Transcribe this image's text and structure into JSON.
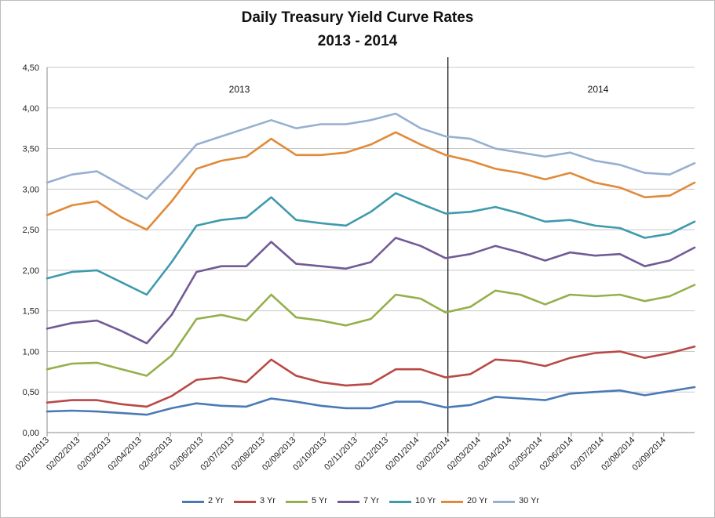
{
  "chart_data": {
    "type": "line",
    "title": "Daily Treasury Yield Curve Rates",
    "subtitle": "2013 - 2014",
    "xlabel": "",
    "ylabel": "",
    "ylim": [
      0,
      4.5
    ],
    "y_ticks": [
      "0,00",
      "0,50",
      "1,00",
      "1,50",
      "2,00",
      "2,50",
      "3,00",
      "3,50",
      "4,00",
      "4,50"
    ],
    "x_ticks": [
      "02/01/2013",
      "02/02/2013",
      "02/03/2013",
      "02/04/2013",
      "02/05/2013",
      "02/06/2013",
      "02/07/2013",
      "02/08/2013",
      "02/09/2013",
      "02/10/2013",
      "02/11/2013",
      "02/12/2013",
      "02/01/2014",
      "02/02/2014",
      "02/03/2014",
      "02/04/2014",
      "02/05/2014",
      "02/06/2014",
      "02/07/2014",
      "02/08/2014",
      "02/09/2014"
    ],
    "grid": "horizontal",
    "legend_position": "bottom",
    "divider_at": "02/02/2014",
    "annotations": [
      "2013",
      "2014"
    ],
    "series": [
      {
        "name": "2 Yr",
        "color": "#4a7ab5",
        "values": [
          0.26,
          0.27,
          0.26,
          0.24,
          0.22,
          0.3,
          0.36,
          0.33,
          0.32,
          0.42,
          0.38,
          0.33,
          0.3,
          0.3,
          0.38,
          0.38,
          0.31,
          0.34,
          0.44,
          0.42,
          0.4,
          0.48,
          0.5,
          0.52,
          0.46,
          0.51,
          0.56
        ]
      },
      {
        "name": "3 Yr",
        "color": "#b84a46",
        "values": [
          0.37,
          0.4,
          0.4,
          0.35,
          0.32,
          0.45,
          0.65,
          0.68,
          0.62,
          0.9,
          0.7,
          0.62,
          0.58,
          0.6,
          0.78,
          0.78,
          0.68,
          0.72,
          0.9,
          0.88,
          0.82,
          0.92,
          0.98,
          1.0,
          0.92,
          0.98,
          1.06
        ]
      },
      {
        "name": "5 Yr",
        "color": "#94b04a",
        "values": [
          0.78,
          0.85,
          0.86,
          0.78,
          0.7,
          0.95,
          1.4,
          1.45,
          1.38,
          1.7,
          1.42,
          1.38,
          1.32,
          1.4,
          1.7,
          1.65,
          1.48,
          1.55,
          1.75,
          1.7,
          1.58,
          1.7,
          1.68,
          1.7,
          1.62,
          1.68,
          1.82
        ]
      },
      {
        "name": "7 Yr",
        "color": "#725a96",
        "values": [
          1.28,
          1.35,
          1.38,
          1.25,
          1.1,
          1.45,
          1.98,
          2.05,
          2.05,
          2.35,
          2.08,
          2.05,
          2.02,
          2.1,
          2.4,
          2.3,
          2.15,
          2.2,
          2.3,
          2.22,
          2.12,
          2.22,
          2.18,
          2.2,
          2.05,
          2.12,
          2.28
        ]
      },
      {
        "name": "10 Yr",
        "color": "#3f9aad",
        "values": [
          1.9,
          1.98,
          2.0,
          1.85,
          1.7,
          2.1,
          2.55,
          2.62,
          2.65,
          2.9,
          2.62,
          2.58,
          2.55,
          2.72,
          2.95,
          2.82,
          2.7,
          2.72,
          2.78,
          2.7,
          2.6,
          2.62,
          2.55,
          2.52,
          2.4,
          2.45,
          2.6
        ]
      },
      {
        "name": "20 Yr",
        "color": "#e18a3a",
        "values": [
          2.68,
          2.8,
          2.85,
          2.65,
          2.5,
          2.85,
          3.25,
          3.35,
          3.4,
          3.62,
          3.42,
          3.42,
          3.45,
          3.55,
          3.7,
          3.55,
          3.42,
          3.35,
          3.25,
          3.2,
          3.12,
          3.2,
          3.08,
          3.02,
          2.9,
          2.92,
          3.08
        ]
      },
      {
        "name": "30 Yr",
        "color": "#97afd0",
        "values": [
          3.08,
          3.18,
          3.22,
          3.05,
          2.88,
          3.2,
          3.55,
          3.65,
          3.75,
          3.85,
          3.75,
          3.8,
          3.8,
          3.85,
          3.93,
          3.75,
          3.65,
          3.62,
          3.5,
          3.45,
          3.4,
          3.45,
          3.35,
          3.3,
          3.2,
          3.18,
          3.32
        ]
      }
    ]
  }
}
